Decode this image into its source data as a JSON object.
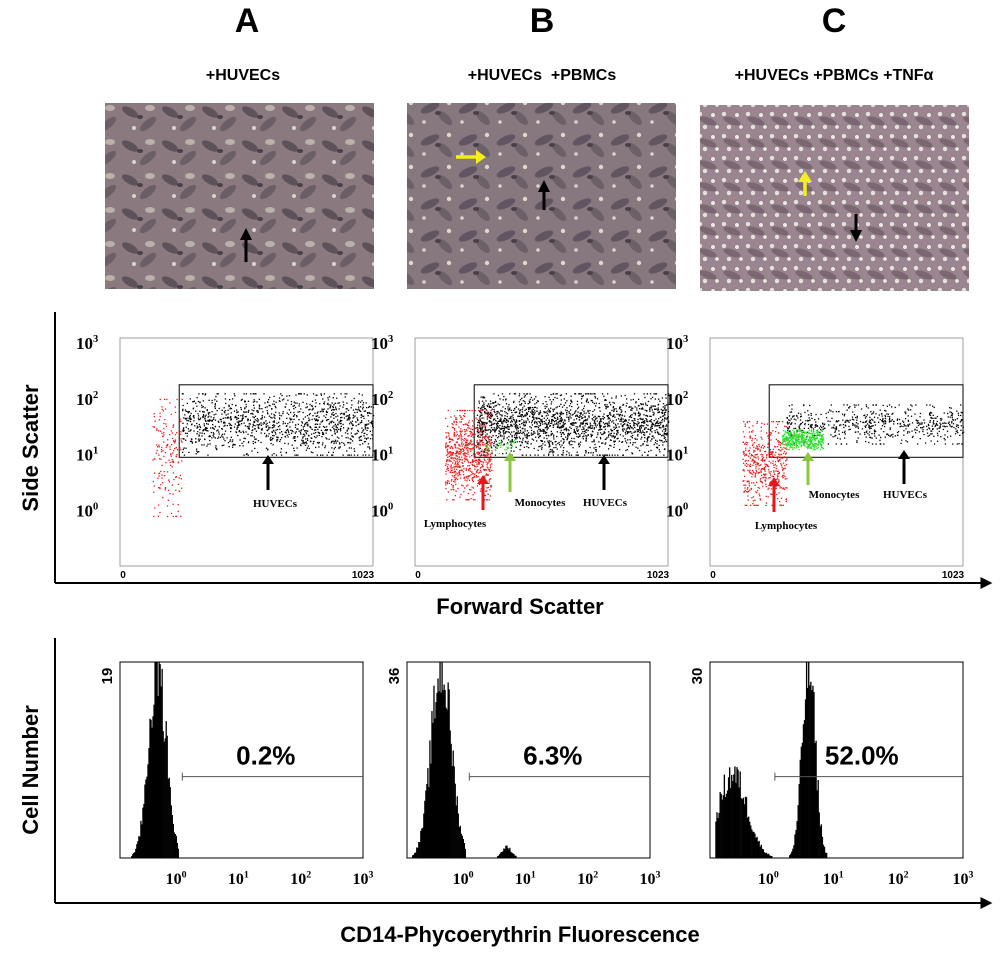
{
  "panels": [
    {
      "letter": "A",
      "condition": "+HUVECs"
    },
    {
      "letter": "B",
      "condition": "+HUVECs  +PBMCs"
    },
    {
      "letter": "C",
      "condition": "+HUVECs +PBMCs +TNFα"
    }
  ],
  "micrographs": [
    {
      "arrows": [
        {
          "color": "black",
          "direction": "up"
        }
      ]
    },
    {
      "arrows": [
        {
          "color": "yellow",
          "direction": "right"
        },
        {
          "color": "black",
          "direction": "up"
        }
      ]
    },
    {
      "arrows": [
        {
          "color": "yellow",
          "direction": "up"
        },
        {
          "color": "black",
          "direction": "down"
        }
      ]
    }
  ],
  "scatter_axes": {
    "ylabel": "Side Scatter",
    "xlabel": "Forward Scatter",
    "x_tick_labels": [
      "0",
      "1023"
    ],
    "y_tick_labels": [
      "10^3",
      "10^2",
      "10^1",
      "10^0"
    ]
  },
  "histogram_axes": {
    "ylabel": "Cell Number",
    "xlabel": "CD14-Phycoerythrin Fluorescence",
    "x_tick_labels": [
      "10^0",
      "10^1",
      "10^2",
      "10^3"
    ]
  },
  "colors": {
    "huvecs": "#000000",
    "lymphocytes": "#ee1c1c",
    "monocytes": "#2fe02f",
    "monocyte_arrow": "#8cc63f",
    "lymphocyte_arrow": "#e8161b",
    "yellow_arrow": "#f4ee1a"
  },
  "chart_data": [
    {
      "type": "scatter",
      "panel": "A",
      "xlim": [
        0,
        1023
      ],
      "ylim_log10": [
        -1,
        3
      ],
      "x_scale": "linear",
      "y_scale": "log",
      "gate": {
        "x": [
          230,
          1023
        ],
        "y_log10": [
          0.95,
          2.25
        ]
      },
      "populations": [
        {
          "name": "HUVECs",
          "color": "black",
          "x_range": [
            240,
            1023
          ],
          "y_log10_range": [
            1.0,
            2.1
          ],
          "count": 1200
        },
        {
          "color": "red",
          "x_range": [
            120,
            240
          ],
          "y_log10_range": [
            -0.1,
            2.0
          ],
          "count": 170
        }
      ],
      "annotations": [
        {
          "text": "HUVECs",
          "arrow_color": "black"
        }
      ]
    },
    {
      "type": "scatter",
      "panel": "B",
      "xlim": [
        0,
        1023
      ],
      "ylim_log10": [
        -1,
        3
      ],
      "x_scale": "linear",
      "y_scale": "log",
      "gate": {
        "x": [
          230,
          1023
        ],
        "y_log10": [
          0.95,
          2.25
        ]
      },
      "populations": [
        {
          "name": "HUVECs",
          "color": "black",
          "x_range": [
            240,
            1023
          ],
          "y_log10_range": [
            1.0,
            2.1
          ],
          "count": 1800
        },
        {
          "name": "Lymphocytes",
          "color": "red",
          "x_range": [
            110,
            300
          ],
          "y_log10_range": [
            0.2,
            1.8
          ],
          "count": 700
        },
        {
          "name": "Monocytes",
          "color": "green",
          "x_range": [
            270,
            400
          ],
          "y_log10_range": [
            1.0,
            1.3
          ],
          "count": 40
        }
      ],
      "annotations": [
        {
          "text": "Lymphocytes",
          "arrow_color": "red"
        },
        {
          "text": "Monocytes",
          "arrow_color": "light-green"
        },
        {
          "text": "HUVECs",
          "arrow_color": "black"
        }
      ]
    },
    {
      "type": "scatter",
      "panel": "C",
      "xlim": [
        0,
        1023
      ],
      "ylim_log10": [
        -1,
        3
      ],
      "x_scale": "linear",
      "y_scale": "log",
      "gate": {
        "x": [
          230,
          1023
        ],
        "y_log10": [
          0.95,
          2.25
        ]
      },
      "populations": [
        {
          "name": "HUVECs",
          "color": "black",
          "x_range": [
            300,
            1023
          ],
          "y_log10_range": [
            1.2,
            1.9
          ],
          "count": 600
        },
        {
          "name": "Lymphocytes",
          "color": "red",
          "x_range": [
            120,
            300
          ],
          "y_log10_range": [
            0.1,
            1.6
          ],
          "count": 450
        },
        {
          "name": "Monocytes",
          "color": "green",
          "x_range": [
            280,
            450
          ],
          "y_log10_range": [
            1.1,
            1.45
          ],
          "count": 450
        }
      ],
      "annotations": [
        {
          "text": "Lymphocytes",
          "arrow_color": "red"
        },
        {
          "text": "Monocytes",
          "arrow_color": "light-green"
        },
        {
          "text": "HUVECs",
          "arrow_color": "black"
        }
      ]
    },
    {
      "type": "area",
      "panel": "A",
      "y_max_label": "19",
      "ylim": [
        0,
        19
      ],
      "x_scale": "log",
      "xlim_log10": [
        -0.9,
        3
      ],
      "marker": {
        "x_log10_start": 0.1,
        "percent": "0.2%"
      },
      "peaks": [
        {
          "center_log10": -0.3,
          "width": 0.14,
          "height": 19
        }
      ],
      "tail_end_log10": 0.05
    },
    {
      "type": "area",
      "panel": "B",
      "y_max_label": "36",
      "ylim": [
        0,
        36
      ],
      "x_scale": "log",
      "xlim_log10": [
        -0.9,
        3
      ],
      "marker": {
        "x_log10_start": 0.1,
        "percent": "6.3%"
      },
      "peaks": [
        {
          "center_log10": -0.35,
          "width": 0.16,
          "height": 36
        },
        {
          "center_log10": 0.7,
          "width": 0.08,
          "height": 2
        }
      ],
      "tail_end_log10": 0.05
    },
    {
      "type": "area",
      "panel": "C",
      "y_max_label": "30",
      "ylim": [
        0,
        30
      ],
      "x_scale": "log",
      "xlim_log10": [
        -0.9,
        3
      ],
      "marker": {
        "x_log10_start": 0.1,
        "percent": "52.0%"
      },
      "peaks": [
        {
          "center_log10": -0.55,
          "width": 0.22,
          "height": 13
        },
        {
          "center_log10": 0.62,
          "width": 0.1,
          "height": 30
        }
      ],
      "tail_end_log10": 0.9
    }
  ]
}
